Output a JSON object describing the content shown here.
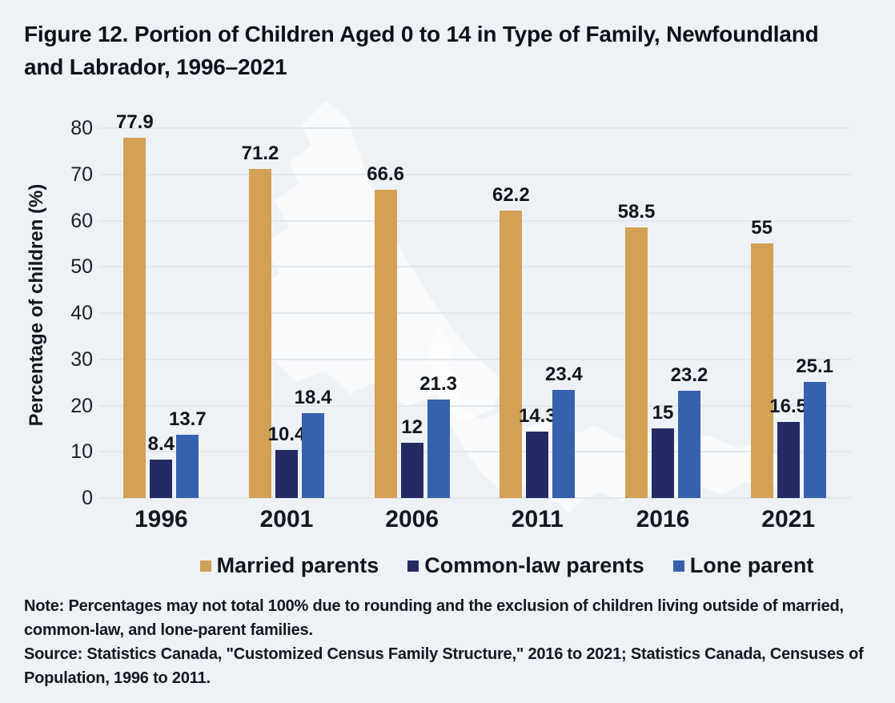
{
  "title": "Figure 12. Portion of Children Aged 0 to 14 in Type of Family, Newfoundland and Labrador, 1996–2021",
  "chart_data": {
    "type": "bar",
    "title": "Figure 12. Portion of Children Aged 0 to 14 in Type of Family, Newfoundland and Labrador, 1996–2021",
    "categories": [
      "1996",
      "2001",
      "2006",
      "2011",
      "2016",
      "2021"
    ],
    "series": [
      {
        "name": "Married parents",
        "color": "#D2A155",
        "values": [
          77.9,
          71.2,
          66.6,
          62.2,
          58.5,
          55
        ]
      },
      {
        "name": "Common-law parents",
        "color": "#242B63",
        "values": [
          8.4,
          10.4,
          12,
          14.3,
          15,
          16.5
        ]
      },
      {
        "name": "Lone parent",
        "color": "#3760AD",
        "values": [
          13.7,
          18.4,
          21.3,
          23.4,
          23.2,
          25.1
        ]
      }
    ],
    "xlabel": "",
    "ylabel": "Percentage of children (%)",
    "ylim": [
      0,
      80
    ],
    "yticks": [
      0,
      10,
      20,
      30,
      40,
      50,
      60,
      70,
      80
    ],
    "grid": true,
    "legend_position": "bottom",
    "background_watermark": "newfoundland-and-labrador-map-silhouette"
  },
  "notes": {
    "note": "Note: Percentages may not total 100% due to rounding and the exclusion of children living outside of married, common-law, and lone-parent families.",
    "source": "Source: Statistics Canada, \"Customized Census Family Structure,\" 2016 to 2021; Statistics Canada, Censuses of Population, 1996 to 2011."
  },
  "colors": {
    "page_background": "#EEF2F6",
    "gridline": "#E1E7EC",
    "map_fill": "rgba(255,255,255,0.62)",
    "text": "#12161C"
  }
}
